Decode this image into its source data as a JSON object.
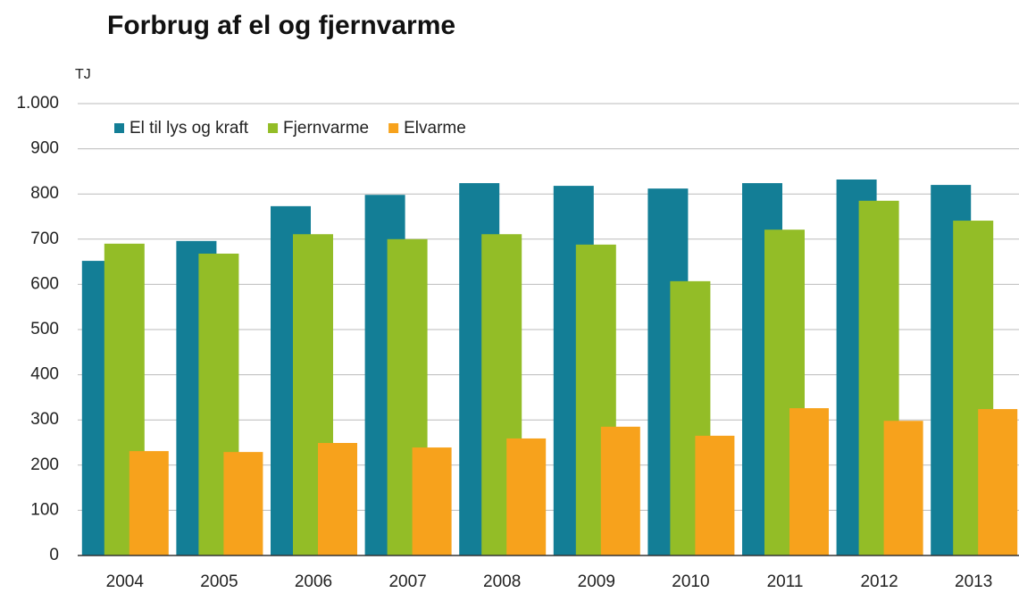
{
  "chart_data": {
    "type": "bar",
    "title": "Forbrug af el og fjernvarme",
    "y_unit": "TJ",
    "categories": [
      "2004",
      "2005",
      "2006",
      "2007",
      "2008",
      "2009",
      "2010",
      "2011",
      "2012",
      "2013"
    ],
    "series": [
      {
        "name": "El til lys og kraft",
        "color": "#137e96",
        "values": [
          652,
          696,
          773,
          798,
          824,
          818,
          812,
          824,
          832,
          820
        ]
      },
      {
        "name": "Fjernvarme",
        "color": "#93bd27",
        "values": [
          690,
          668,
          711,
          700,
          711,
          688,
          607,
          721,
          785,
          741
        ]
      },
      {
        "name": "Elvarme",
        "color": "#f7a21c",
        "values": [
          231,
          229,
          249,
          239,
          259,
          285,
          265,
          326,
          298,
          324
        ]
      }
    ],
    "ylim": [
      0,
      1000
    ],
    "yticks": [
      0,
      100,
      200,
      300,
      400,
      500,
      600,
      700,
      800,
      900,
      {
        "value": 1000,
        "label": "1.000"
      }
    ],
    "grid": true,
    "legend": "top-left"
  }
}
